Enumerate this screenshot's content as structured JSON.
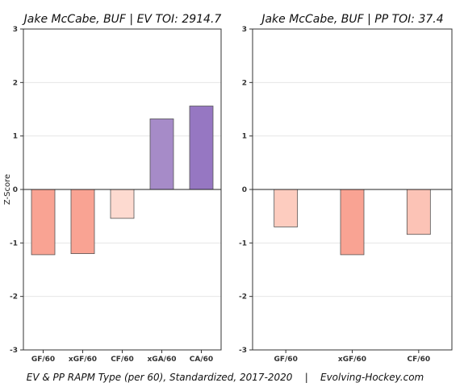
{
  "footer": "EV & PP RAPM Type (per 60), Standardized, 2017-2020    |    Evolving-Hockey.com",
  "colors": {
    "neg_strong": "#f9a393",
    "neg_light": "#fddad0",
    "neg_mid": "#fcc3b6",
    "pos_light": "#a68bc8",
    "pos_strong": "#9677c2",
    "axis": "#333333",
    "grid": "#e6e6e6"
  },
  "chart_data": [
    {
      "type": "bar",
      "title": "Jake McCabe, BUF  |  EV TOI: 2914.7",
      "ylabel": "Z-Score",
      "ylim": [
        -3,
        3
      ],
      "yticks": [
        -3,
        -2,
        -1,
        0,
        1,
        2,
        3
      ],
      "grid": true,
      "categories": [
        "GF/60",
        "xGF/60",
        "CF/60",
        "xGA/60",
        "CA/60"
      ],
      "values": [
        -1.22,
        -1.2,
        -0.54,
        1.32,
        1.56
      ],
      "bar_colors": [
        "#f9a393",
        "#f9a393",
        "#fddad0",
        "#a68bc8",
        "#9677c2"
      ]
    },
    {
      "type": "bar",
      "title": "Jake McCabe, BUF  |  PP TOI: 37.4",
      "ylabel": "",
      "ylim": [
        -3,
        3
      ],
      "yticks": [
        -3,
        -2,
        -1,
        0,
        1,
        2,
        3
      ],
      "grid": true,
      "categories": [
        "GF/60",
        "xGF/60",
        "CF/60"
      ],
      "values": [
        -0.7,
        -1.22,
        -0.84
      ],
      "bar_colors": [
        "#fdccbf",
        "#f9a393",
        "#fcc3b6"
      ]
    }
  ]
}
